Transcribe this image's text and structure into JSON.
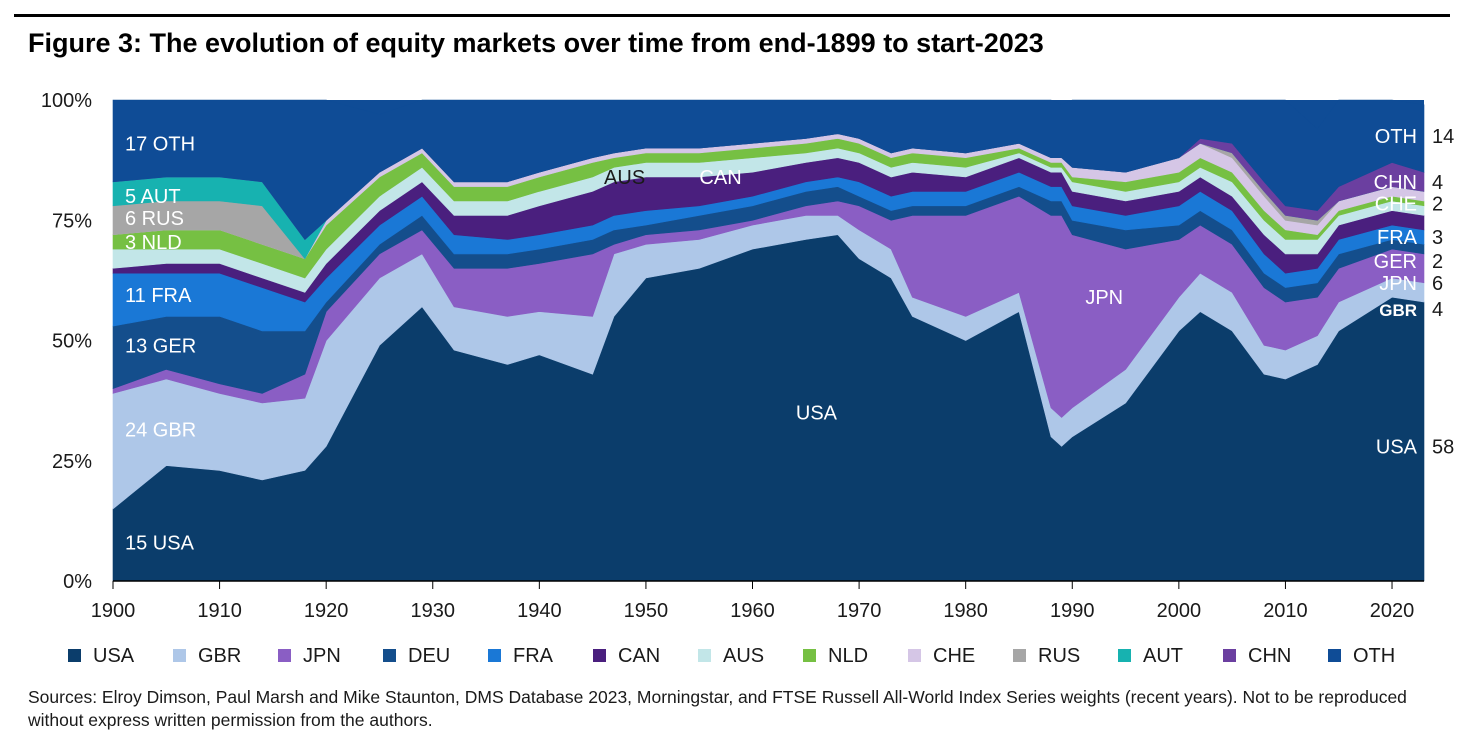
{
  "title": "Figure 3: The evolution of equity markets over time from end-1899 to start-2023",
  "source": "Sources: Elroy Dimson, Paul Marsh and Mike Staunton, DMS Database 2023, Morningstar, and FTSE Russell All-World Index Series weights (recent years). Not to be reproduced without express written permission from the authors.",
  "chart_data": {
    "type": "area",
    "stacked": true,
    "x_range": [
      1900,
      2023
    ],
    "ylim": [
      0,
      100
    ],
    "x_ticks": [
      "1900",
      "1910",
      "1920",
      "1930",
      "1940",
      "1950",
      "1960",
      "1970",
      "1980",
      "1990",
      "2000",
      "2010",
      "2020"
    ],
    "y_ticks": [
      "0%",
      "25%",
      "50%",
      "75%",
      "100%"
    ],
    "x_tick_values": [
      1900,
      1910,
      1920,
      1930,
      1940,
      1950,
      1960,
      1970,
      1980,
      1990,
      2000,
      2010,
      2020
    ],
    "y_tick_values": [
      0,
      25,
      50,
      75,
      100
    ],
    "x": [
      1900,
      1905,
      1910,
      1914,
      1918,
      1920,
      1925,
      1929,
      1932,
      1937,
      1940,
      1945,
      1947,
      1950,
      1955,
      1960,
      1965,
      1968,
      1970,
      1973,
      1975,
      1980,
      1985,
      1988,
      1989,
      1990,
      1995,
      2000,
      2002,
      2005,
      2008,
      2010,
      2013,
      2015,
      2020,
      2023
    ],
    "series": [
      {
        "name": "USA",
        "color": "#0b3d6b",
        "values": [
          15,
          24,
          23,
          21,
          23,
          28,
          49,
          57,
          48,
          45,
          47,
          43,
          55,
          63,
          65,
          69,
          71,
          72,
          67,
          63,
          55,
          50,
          56,
          30,
          28,
          30,
          37,
          52,
          56,
          52,
          43,
          42,
          45,
          52,
          59,
          58
        ]
      },
      {
        "name": "GBR",
        "color": "#aec7e8",
        "values": [
          24,
          18,
          16,
          16,
          15,
          22,
          14,
          11,
          9,
          10,
          9,
          12,
          13,
          7,
          6,
          5,
          5,
          4,
          6,
          6,
          4,
          5,
          4,
          6,
          6,
          6,
          7,
          7,
          8,
          8,
          6,
          6,
          6,
          6,
          4,
          4
        ]
      },
      {
        "name": "JPN",
        "color": "#8a5ec4",
        "values": [
          1,
          2,
          2,
          2,
          5,
          6,
          5,
          5,
          8,
          10,
          10,
          13,
          2,
          2,
          2,
          1,
          2,
          3,
          5,
          6,
          17,
          21,
          20,
          40,
          42,
          36,
          25,
          12,
          10,
          10,
          12,
          10,
          8,
          7,
          6,
          6
        ]
      },
      {
        "name": "DEU",
        "color": "#144e8c",
        "values": [
          13,
          11,
          14,
          13,
          9,
          2,
          2,
          3,
          3,
          3,
          3,
          3,
          3,
          2,
          3,
          3,
          3,
          3,
          2,
          2,
          2,
          2,
          2,
          3,
          3,
          3,
          4,
          3,
          3,
          3,
          3,
          3,
          3,
          3,
          2,
          2
        ]
      },
      {
        "name": "FRA",
        "color": "#1a78d6",
        "values": [
          11,
          9,
          9,
          9,
          6,
          5,
          4,
          4,
          4,
          3,
          3,
          3,
          3,
          3,
          2,
          2,
          2,
          2,
          3,
          3,
          3,
          3,
          3,
          3,
          3,
          3,
          3,
          4,
          4,
          4,
          4,
          3,
          3,
          3,
          3,
          3
        ]
      },
      {
        "name": "CAN",
        "color": "#4a1f7e",
        "values": [
          1,
          2,
          2,
          2,
          2,
          3,
          3,
          3,
          4,
          5,
          6,
          7,
          7,
          7,
          6,
          5,
          4,
          4,
          4,
          4,
          4,
          3,
          3,
          3,
          3,
          3,
          3,
          3,
          3,
          3,
          4,
          4,
          3,
          3,
          3,
          3
        ]
      },
      {
        "name": "AUS",
        "color": "#c2e6e8",
        "values": [
          4,
          3,
          3,
          3,
          3,
          3,
          3,
          3,
          3,
          3,
          3,
          3,
          3,
          3,
          3,
          3,
          2,
          2,
          2,
          2,
          2,
          2,
          1,
          1,
          1,
          2,
          2,
          2,
          2,
          3,
          3,
          3,
          3,
          2,
          2,
          2
        ]
      },
      {
        "name": "NLD",
        "color": "#76c043",
        "values": [
          3,
          4,
          4,
          4,
          4,
          5,
          4,
          3,
          3,
          3,
          3,
          3,
          2,
          2,
          2,
          2,
          2,
          2,
          2,
          2,
          2,
          2,
          1,
          1,
          1,
          1,
          2,
          2,
          2,
          2,
          2,
          2,
          1,
          1,
          1,
          1
        ]
      },
      {
        "name": "CHE",
        "color": "#d5c6e6",
        "values": [
          0,
          0,
          0,
          0,
          0,
          1,
          1,
          1,
          1,
          1,
          1,
          1,
          1,
          1,
          1,
          1,
          1,
          1,
          1,
          1,
          1,
          1,
          1,
          1,
          1,
          2,
          2,
          3,
          3,
          3,
          3,
          2,
          2,
          2,
          2,
          2
        ]
      },
      {
        "name": "RUS",
        "color": "#a6a6a6",
        "values": [
          6,
          6,
          6,
          8,
          0,
          0,
          0,
          0,
          0,
          0,
          0,
          0,
          0,
          0,
          0,
          0,
          0,
          0,
          0,
          0,
          0,
          0,
          0,
          0,
          0,
          0,
          0,
          0,
          0,
          1,
          1,
          1,
          1,
          0,
          0,
          0
        ]
      },
      {
        "name": "AUT",
        "color": "#17b2b0",
        "values": [
          5,
          5,
          5,
          5,
          4,
          0,
          0,
          0,
          0,
          0,
          0,
          0,
          0,
          0,
          0,
          0,
          0,
          0,
          0,
          0,
          0,
          0,
          0,
          0,
          0,
          0,
          0,
          0,
          0,
          0,
          0,
          0,
          0,
          0,
          0,
          0
        ]
      },
      {
        "name": "CHN",
        "color": "#6b3fa0",
        "values": [
          0,
          0,
          0,
          0,
          0,
          0,
          0,
          0,
          0,
          0,
          0,
          0,
          0,
          0,
          0,
          0,
          0,
          0,
          0,
          0,
          0,
          0,
          0,
          0,
          0,
          0,
          0,
          0,
          1,
          2,
          2,
          2,
          2,
          3,
          5,
          4
        ]
      },
      {
        "name": "OTH",
        "color": "#0f4c96",
        "values": [
          17,
          16,
          16,
          17,
          29,
          25,
          12,
          10,
          17,
          17,
          15,
          12,
          11,
          11,
          10,
          9,
          8,
          7,
          8,
          11,
          10,
          11,
          9,
          12,
          11,
          15,
          15,
          12,
          10,
          15,
          22,
          24,
          17,
          18,
          13,
          14
        ]
      }
    ],
    "left_labels": [
      {
        "text": "17  OTH",
        "y": 91
      },
      {
        "text": "5  AUT",
        "y": 80
      },
      {
        "text": "6  RUS",
        "y": 75.5
      },
      {
        "text": "3  NLD",
        "y": 70.5
      },
      {
        "text": "11  FRA",
        "y": 59.5
      },
      {
        "text": "13  GER",
        "y": 49
      },
      {
        "text": "24  GBR",
        "y": 31.5
      },
      {
        "text": "15  USA",
        "y": 8
      }
    ],
    "right_labels": [
      {
        "name": "OTH",
        "value": "14",
        "y": 92.5
      },
      {
        "name": "CHN",
        "value": "4",
        "y": 83
      },
      {
        "name": "CHE",
        "value": "2",
        "y": 78.5
      },
      {
        "name": "FRA",
        "value": "3",
        "y": 71.5
      },
      {
        "name": "GER",
        "value": "2",
        "y": 66.5
      },
      {
        "name": "JPN",
        "value": "6",
        "y": 62
      },
      {
        "name": "GBR",
        "value": "4",
        "y": 56.5
      },
      {
        "name": "USA",
        "value": "58",
        "y": 28
      }
    ],
    "inner_labels": [
      {
        "text": "USA",
        "x": 1966,
        "y": 35,
        "color": "#ffffff"
      },
      {
        "text": "JPN",
        "x": 1993,
        "y": 59,
        "color": "#ffffff"
      },
      {
        "text": "AUS",
        "x": 1948,
        "y": 84,
        "color": "#1a1a1a"
      },
      {
        "text": "CAN",
        "x": 1957,
        "y": 84,
        "color": "#ffffff"
      }
    ],
    "legend_position": "bottom",
    "legend": [
      "USA",
      "GBR",
      "JPN",
      "DEU",
      "FRA",
      "CAN",
      "AUS",
      "NLD",
      "CHE",
      "RUS",
      "AUT",
      "CHN",
      "OTH"
    ],
    "grid": false
  }
}
